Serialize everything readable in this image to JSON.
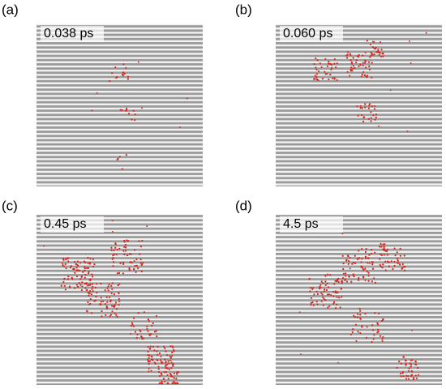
{
  "panels": [
    {
      "label": "(a)",
      "time": "0.038 ps"
    },
    {
      "label": "(b)",
      "time": "0.060 ps"
    },
    {
      "label": "(c)",
      "time": "0.45 ps"
    },
    {
      "label": "(d)",
      "time": "4.5 ps"
    }
  ]
}
